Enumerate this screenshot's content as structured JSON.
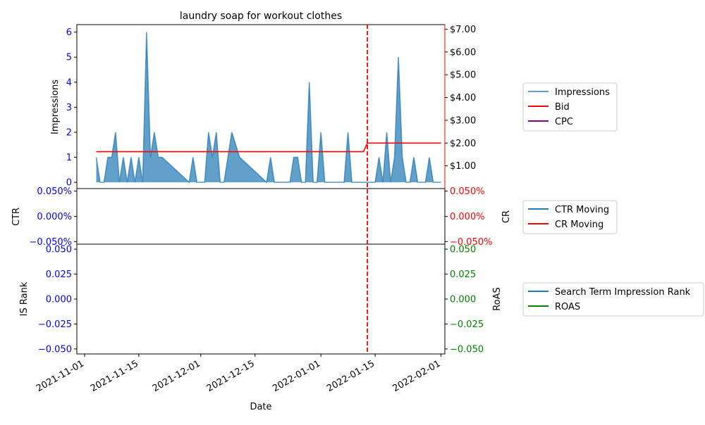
{
  "chart_data": [
    {
      "type": "area",
      "title": "laundry soap for workout clothes",
      "ylabel_left": "Impressions",
      "ylim_left": [
        -0.25,
        6.3
      ],
      "yticks_left": [
        "0",
        "1",
        "2",
        "3",
        "4",
        "5",
        "6"
      ],
      "ylim_right": [
        0,
        7.2
      ],
      "yticks_right": [
        "$1.00",
        "$2.00",
        "$3.00",
        "$4.00",
        "$5.00",
        "$6.00",
        "$7.00"
      ],
      "x_range": [
        "2021-10-30",
        "2022-02-02"
      ],
      "event_date": "2022-01-13",
      "series": [
        {
          "name": "Impressions",
          "axis": "left",
          "x": [
            "2021-11-04",
            "2021-11-05",
            "2021-11-06",
            "2021-11-07",
            "2021-11-08",
            "2021-11-09",
            "2021-11-10",
            "2021-11-11",
            "2021-11-12",
            "2021-11-13",
            "2021-11-14",
            "2021-11-15",
            "2021-11-16",
            "2021-11-17",
            "2021-11-18",
            "2021-11-19",
            "2021-11-20",
            "2021-11-21",
            "2021-11-28",
            "2021-11-29",
            "2021-11-30",
            "2021-12-01",
            "2021-12-02",
            "2021-12-03",
            "2021-12-04",
            "2021-12-05",
            "2021-12-06",
            "2021-12-07",
            "2021-12-08",
            "2021-12-09",
            "2021-12-10",
            "2021-12-11",
            "2021-12-18",
            "2021-12-19",
            "2021-12-20",
            "2021-12-21",
            "2021-12-22",
            "2021-12-23",
            "2021-12-24",
            "2021-12-25",
            "2021-12-26",
            "2021-12-27",
            "2021-12-28",
            "2021-12-29",
            "2021-12-30",
            "2021-12-31",
            "2022-01-01",
            "2022-01-02",
            "2022-01-07",
            "2022-01-08",
            "2022-01-09",
            "2022-01-14",
            "2022-01-15",
            "2022-01-16",
            "2022-01-17",
            "2022-01-18",
            "2022-01-19",
            "2022-01-20",
            "2022-01-21",
            "2022-01-22",
            "2022-01-23",
            "2022-01-24",
            "2022-01-25",
            "2022-01-26",
            "2022-01-27",
            "2022-01-28",
            "2022-01-29",
            "2022-01-30",
            "2022-01-31",
            "2022-02-01"
          ],
          "values": [
            1,
            0,
            0,
            1,
            1,
            2,
            0,
            1,
            0,
            1,
            0,
            1,
            0,
            6,
            1,
            2,
            1,
            1,
            0,
            1,
            0,
            0,
            0,
            2,
            1,
            2,
            0,
            0,
            1,
            2,
            1.5,
            1,
            0,
            1,
            0,
            0,
            0,
            0,
            0,
            1,
            1,
            0,
            0,
            4,
            0,
            0,
            2,
            0,
            0,
            2,
            0,
            0,
            0,
            1,
            0,
            2,
            0,
            1,
            5,
            1,
            0,
            0,
            1,
            0,
            0,
            0,
            1,
            0,
            0,
            0
          ]
        },
        {
          "name": "Bid",
          "axis": "right",
          "x": [
            "2021-11-04",
            "2022-01-12",
            "2022-01-13",
            "2022-02-01"
          ],
          "values": [
            1.62,
            1.62,
            2.0,
            2.0
          ]
        },
        {
          "name": "CPC",
          "axis": "right",
          "x": [],
          "values": []
        }
      ],
      "legend": [
        "Impressions",
        "Bid",
        "CPC"
      ],
      "legend_placement": "outside-right"
    },
    {
      "type": "line",
      "ylabel_left": "CTR",
      "ylabel_right": "CR",
      "yticks_left": [
        "−0.050%",
        "0.000%",
        "0.050%"
      ],
      "yticks_right": [
        "−0.050%",
        "0.000%",
        "0.050%"
      ],
      "series": [
        {
          "name": "CTR Moving",
          "values": []
        },
        {
          "name": "CR Moving",
          "values": []
        }
      ],
      "legend": [
        "CTR Moving",
        "CR Moving"
      ],
      "legend_placement": "outside-right"
    },
    {
      "type": "line",
      "ylabel_left": "IS Rank",
      "ylabel_right": "RoAS",
      "xlabel": "Date",
      "yticks_left": [
        "−0.050",
        "−0.025",
        "0.000",
        "0.025",
        "0.050"
      ],
      "yticks_right": [
        "−0.050",
        "−0.025",
        "0.000",
        "0.025",
        "0.050"
      ],
      "xticks": [
        "2021-11-01",
        "2021-11-15",
        "2021-12-01",
        "2021-12-15",
        "2022-01-01",
        "2022-01-15",
        "2022-02-01"
      ],
      "series": [
        {
          "name": "Search Term Impression Rank",
          "values": []
        },
        {
          "name": "ROAS",
          "values": []
        }
      ],
      "legend": [
        "Search Term Impression Rank",
        "ROAS"
      ],
      "legend_placement": "outside-right"
    }
  ],
  "colors": {
    "impressions": "#1f77b4",
    "bid": "#ff0000",
    "cpc": "#800080",
    "ctr": "#1f77b4",
    "cr": "#ff0000",
    "rank": "#1f77b4",
    "roas": "#008000",
    "left_ticks": "#0000ff",
    "right_ticks_cr": "#ff0000",
    "right_ticks_roas": "#008000"
  }
}
